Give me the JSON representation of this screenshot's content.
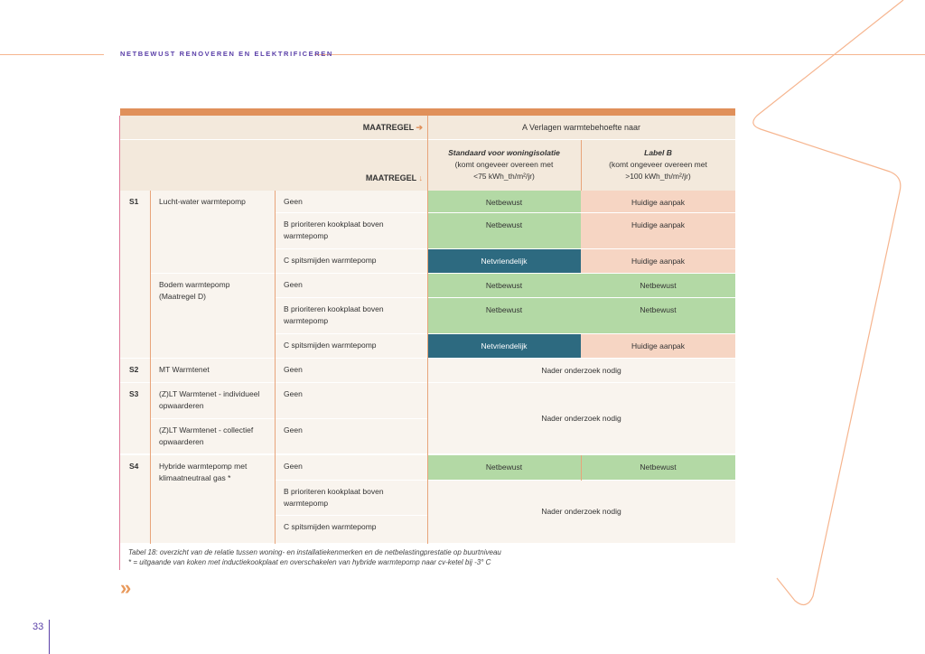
{
  "running_header": "NETBEWUST RENOVEREN EN ELEKTRIFICEREN",
  "colors": {
    "accent": "#e0905a",
    "netbewust": "#b3d9a5",
    "huidige_aanpak": "#f6d5c3",
    "netvriendelijk": "#2d6a80",
    "purple": "#5a3fa8"
  },
  "header": {
    "maatregel_right": "MAATREGEL",
    "arrow_right": "➔",
    "maatregel_down": "MAATREGEL",
    "arrow_down": "↓",
    "group_title": "A Verlagen warmtebehoefte naar",
    "col1_title": "Standaard voor woningisolatie",
    "col1_sub1": "(komt ongeveer overeen met",
    "col1_sub2": "<75 kWh_th/m²/jr)",
    "col2_title": "Label B",
    "col2_sub1": "(komt ongeveer overeen met",
    "col2_sub2": ">100 kWh_th/m²/jr)"
  },
  "scenarios": [
    {
      "id": "S1",
      "systems": [
        {
          "name": "Lucht-water warmtepomp",
          "rows": [
            {
              "maatregel": "Geen",
              "a": "Netbewust",
              "b": "Huidige aanpak"
            },
            {
              "maatregel": "B prioriteren kookplaat boven warmtepomp",
              "a": "Netbewust",
              "b": "Huidige aanpak"
            },
            {
              "maatregel": "C spitsmijden warmtepomp",
              "a": "Netvriendelijk",
              "b": "Huidige aanpak"
            }
          ]
        },
        {
          "name": "Bodem warmtepomp (Maatregel D)",
          "rows": [
            {
              "maatregel": "Geen",
              "a": "Netbewust",
              "b": "Netbewust"
            },
            {
              "maatregel": "B prioriteren kookplaat boven warmtepomp",
              "a": "Netbewust",
              "b": "Netbewust"
            },
            {
              "maatregel": "C spitsmijden warmtepomp",
              "a": "Netvriendelijk",
              "b": "Huidige aanpak"
            }
          ]
        }
      ]
    },
    {
      "id": "S2",
      "systems": [
        {
          "name": "MT Warmtenet",
          "rows": [
            {
              "maatregel": "Geen"
            }
          ]
        }
      ],
      "merged": "Nader onderzoek nodig"
    },
    {
      "id": "S3",
      "systems": [
        {
          "name": "(Z)LT Warmtenet - individueel opwaarderen",
          "rows": [
            {
              "maatregel": "Geen"
            }
          ]
        },
        {
          "name": "(Z)LT Warmtenet - collectief opwaarderen",
          "rows": [
            {
              "maatregel": "Geen"
            }
          ]
        }
      ],
      "merged": "Nader onderzoek nodig"
    },
    {
      "id": "S4",
      "systems": [
        {
          "name": "Hybride warmtepomp met klimaatneutraal gas *",
          "rows": [
            {
              "maatregel": "Geen",
              "a": "Netbewust",
              "b": "Netbewust"
            },
            {
              "maatregel": "B prioriteren kookplaat boven warmtepomp"
            },
            {
              "maatregel": "C spitsmijden warmtepomp"
            }
          ]
        }
      ],
      "merged_partial": "Nader onderzoek nodig"
    }
  ],
  "caption": "Tabel 18: overzicht van de relatie tussen woning- en installatiekenmerken en de netbelastingprestatie op buurtniveau",
  "footnote": "* = uitgaande van koken met inductiekookplaat en overschakelen van hybride warmtepomp naar cv-ketel bij -3° C",
  "chevron": "»",
  "page_number": "33"
}
